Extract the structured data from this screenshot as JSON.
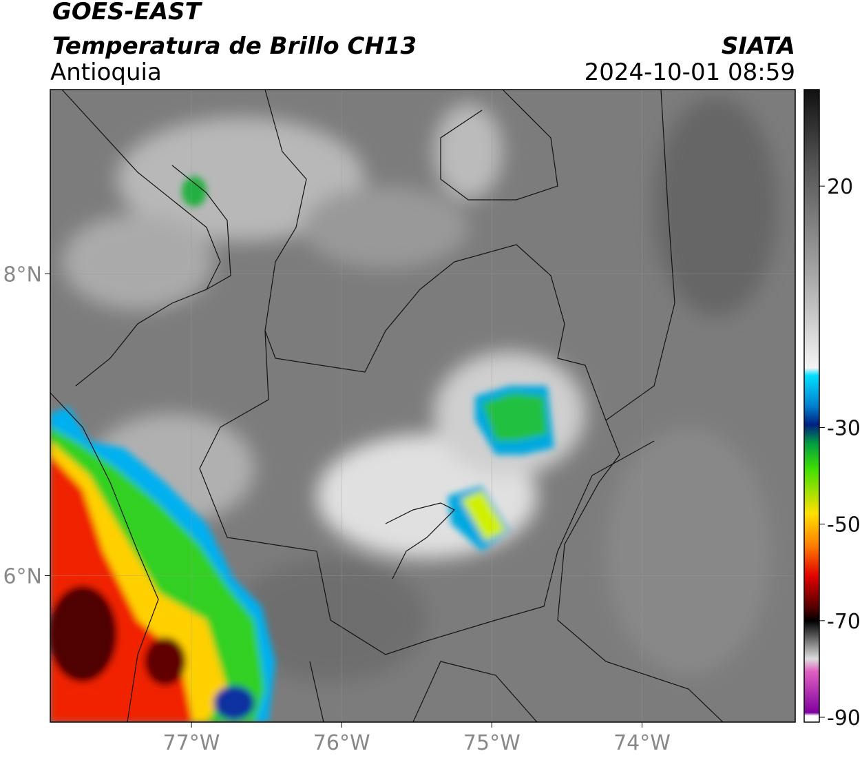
{
  "header": {
    "title": "GOES-EAST",
    "subtitle": "Temperatura de Brillo CH13",
    "region": "Antioquia",
    "source": "SIATA",
    "datetime": "2024-10-01 08:59"
  },
  "map": {
    "xlim": [
      -77.94,
      -72.98
    ],
    "ylim": [
      5.03,
      9.22
    ],
    "xticks": [
      {
        "value": -77,
        "label": "77°W"
      },
      {
        "value": -76,
        "label": "76°W"
      },
      {
        "value": -75,
        "label": "75°W"
      },
      {
        "value": -74,
        "label": "74°W"
      }
    ],
    "yticks": [
      {
        "value": 6,
        "label": "6°N"
      },
      {
        "value": 8,
        "label": "8°N"
      }
    ],
    "grid": true
  },
  "colorbar": {
    "lim": [
      -91,
      40
    ],
    "ticks": [
      20,
      -30,
      -50,
      -70,
      -90
    ]
  }
}
